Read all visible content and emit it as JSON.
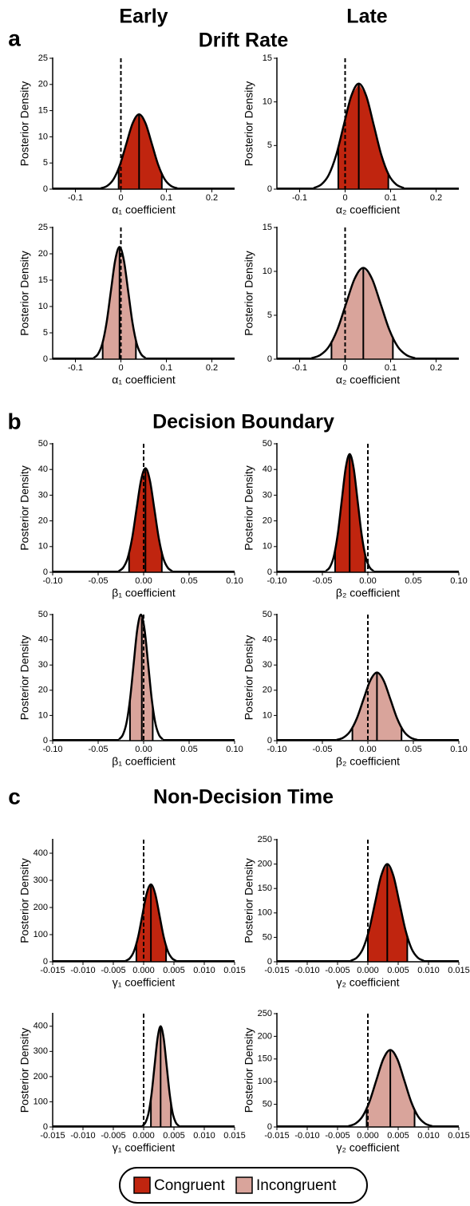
{
  "columns": [
    "Early",
    "Late"
  ],
  "panels": [
    {
      "label": "a",
      "title": "Drift Rate"
    },
    {
      "label": "b",
      "title": "Decision Boundary"
    },
    {
      "label": "c",
      "title": "Non-Decision Time"
    }
  ],
  "chart_data": [
    {
      "type": "density",
      "xlabel": "α₁ coefficient",
      "ylabel": "Posterior Density",
      "xlim": [
        -0.15,
        0.25
      ],
      "xticks": [
        -0.1,
        0,
        0.1,
        0.2
      ],
      "ylim": [
        0,
        25
      ],
      "yticks": [
        0,
        5,
        10,
        15,
        20,
        25
      ],
      "vline": 0,
      "ci": [
        -0.005,
        0.09
      ],
      "median": 0.04,
      "x": [
        -0.044,
        -0.03,
        -0.016,
        -0.002,
        0.012,
        0.026,
        0.04,
        0.054,
        0.068,
        0.082,
        0.096,
        0.11,
        0.124
      ],
      "series": [
        {
          "name": "Congruent",
          "color": "#c0250f",
          "values": [
            0.16,
            0.63,
            1.93,
            4.65,
            8.68,
            12.61,
            14.3,
            12.61,
            8.68,
            4.65,
            1.93,
            0.63,
            0.16
          ]
        }
      ]
    },
    {
      "type": "density",
      "xlabel": "α₂ coefficient",
      "ylabel": "Posterior Density",
      "xlim": [
        -0.15,
        0.25
      ],
      "xticks": [
        -0.1,
        0,
        0.1,
        0.2
      ],
      "ylim": [
        0,
        15
      ],
      "yticks": [
        0,
        5,
        10,
        15
      ],
      "vline": 0,
      "ci": [
        -0.015,
        0.095
      ],
      "median": 0.03,
      "x": [
        -0.069,
        -0.0525,
        -0.036,
        -0.0195,
        -0.003,
        0.0135,
        0.03,
        0.0465,
        0.063,
        0.0795,
        0.096,
        0.1125,
        0.129
      ],
      "series": [
        {
          "name": "Congruent",
          "color": "#c0250f",
          "values": [
            0.13,
            0.53,
            1.63,
            3.93,
            7.34,
            10.67,
            12.1,
            10.67,
            7.34,
            3.93,
            1.63,
            0.53,
            0.13
          ]
        }
      ]
    },
    {
      "type": "density",
      "xlabel": "α₁ coefficient",
      "ylabel": "Posterior Density",
      "xlim": [
        -0.15,
        0.25
      ],
      "xticks": [
        -0.1,
        0,
        0.1,
        0.2
      ],
      "ylim": [
        0,
        25
      ],
      "yticks": [
        0,
        5,
        10,
        15,
        20,
        25
      ],
      "vline": 0,
      "ci": [
        -0.04,
        0.033
      ],
      "median": -0.003,
      "x": [
        -0.06,
        -0.0505,
        -0.041,
        -0.0315,
        -0.022,
        -0.0125,
        -0.003,
        0.0065,
        0.016,
        0.0255,
        0.035,
        0.0445,
        0.054
      ],
      "series": [
        {
          "name": "Incongruent",
          "color": "#d9a49b",
          "values": [
            0.23,
            0.94,
            2.88,
            6.92,
            12.93,
            18.79,
            21.3,
            18.79,
            12.93,
            6.92,
            2.88,
            0.94,
            0.23
          ]
        }
      ]
    },
    {
      "type": "density",
      "xlabel": "α₂ coefficient",
      "ylabel": "Posterior Density",
      "xlim": [
        -0.15,
        0.25
      ],
      "xticks": [
        -0.1,
        0,
        0.1,
        0.2
      ],
      "ylim": [
        0,
        15
      ],
      "yticks": [
        0,
        5,
        10,
        15
      ],
      "vline": 0,
      "ci": [
        -0.03,
        0.105
      ],
      "median": 0.04,
      "x": [
        -0.074,
        -0.055,
        -0.036,
        -0.017,
        0.002,
        0.021,
        0.04,
        0.059,
        0.078,
        0.097,
        0.116,
        0.135,
        0.154
      ],
      "series": [
        {
          "name": "Incongruent",
          "color": "#d9a49b",
          "values": [
            0.11,
            0.46,
            1.4,
            3.38,
            6.31,
            9.17,
            10.4,
            9.17,
            6.31,
            3.38,
            1.4,
            0.46,
            0.11
          ]
        }
      ]
    },
    {
      "type": "density",
      "xlabel": "β₁ coefficient",
      "ylabel": "Posterior Density",
      "xlim": [
        -0.1,
        0.1
      ],
      "xticks": [
        {
          "value": -0.1,
          "label": "-0.10"
        },
        {
          "value": -0.05,
          "label": "-0.05"
        },
        {
          "value": 0,
          "label": "0.00"
        },
        {
          "value": 0.05,
          "label": "0.05"
        },
        {
          "value": 0.1,
          "label": "0.10"
        }
      ],
      "ylim": [
        0,
        50
      ],
      "yticks": [
        0,
        10,
        20,
        30,
        40,
        50
      ],
      "vline": 0,
      "ci": [
        -0.016,
        0.02
      ],
      "median": 0.002,
      "x": [
        -0.0274,
        -0.0225,
        -0.0176,
        -0.0127,
        -0.0078,
        -0.0029,
        0.002,
        0.0069,
        0.0118,
        0.0167,
        0.0216,
        0.0265,
        0.0314
      ],
      "series": [
        {
          "name": "Congruent",
          "color": "#c0250f",
          "values": [
            0.45,
            1.78,
            5.47,
            13.16,
            24.58,
            35.72,
            40.5,
            35.72,
            24.58,
            13.16,
            5.47,
            1.78,
            0.45
          ]
        }
      ]
    },
    {
      "type": "density",
      "xlabel": "β₂ coefficient",
      "ylabel": "Posterior Density",
      "xlim": [
        -0.1,
        0.1
      ],
      "xticks": [
        {
          "value": -0.1,
          "label": "-0.10"
        },
        {
          "value": -0.05,
          "label": "-0.05"
        },
        {
          "value": 0,
          "label": "0.00"
        },
        {
          "value": 0.05,
          "label": "0.05"
        },
        {
          "value": 0.1,
          "label": "0.10"
        }
      ],
      "ylim": [
        0,
        50
      ],
      "yticks": [
        0,
        10,
        20,
        30,
        40,
        50
      ],
      "vline": 0,
      "ci": [
        -0.036,
        -0.003
      ],
      "median": -0.02,
      "x": [
        -0.0461,
        -0.04175,
        -0.0374,
        -0.03305,
        -0.0287,
        -0.02435,
        -0.02,
        -0.01565,
        -0.0113,
        -0.00695,
        -0.0026,
        0.00175,
        0.0061
      ],
      "series": [
        {
          "name": "Congruent",
          "color": "#c0250f",
          "values": [
            0.51,
            2.02,
            6.21,
            14.95,
            27.92,
            40.57,
            46,
            40.57,
            27.92,
            14.95,
            6.21,
            2.02,
            0.51
          ]
        }
      ]
    },
    {
      "type": "density",
      "xlabel": "β₁ coefficient",
      "ylabel": "Posterior Density",
      "xlim": [
        -0.1,
        0.1
      ],
      "xticks": [
        {
          "value": -0.1,
          "label": "-0.10"
        },
        {
          "value": -0.05,
          "label": "-0.05"
        },
        {
          "value": 0,
          "label": "0.00"
        },
        {
          "value": 0.05,
          "label": "0.05"
        },
        {
          "value": 0.1,
          "label": "0.10"
        }
      ],
      "ylim": [
        0,
        50
      ],
      "yticks": [
        0,
        10,
        20,
        30,
        40,
        50
      ],
      "vline": 0,
      "ci": [
        -0.015,
        0.01
      ],
      "median": -0.002,
      "x": [
        -0.027,
        -0.023,
        -0.019,
        -0.015,
        -0.011,
        -0.007,
        -0.003,
        0.001,
        0.005,
        0.009,
        0.013,
        0.017,
        0.021
      ],
      "series": [
        {
          "name": "Incongruent",
          "color": "#d9a49b",
          "values": [
            0.55,
            2.2,
            6.75,
            16.25,
            30.35,
            44.1,
            50,
            44.1,
            30.35,
            16.25,
            6.75,
            2.2,
            0.55
          ]
        }
      ]
    },
    {
      "type": "density",
      "xlabel": "β₂ coefficient",
      "ylabel": "Posterior Density",
      "xlim": [
        -0.1,
        0.1
      ],
      "xticks": [
        {
          "value": -0.1,
          "label": "-0.10"
        },
        {
          "value": -0.05,
          "label": "-0.05"
        },
        {
          "value": 0,
          "label": "0.00"
        },
        {
          "value": 0.05,
          "label": "0.05"
        },
        {
          "value": 0.1,
          "label": "0.10"
        }
      ],
      "ylim": [
        0,
        50
      ],
      "yticks": [
        0,
        10,
        20,
        30,
        40,
        50
      ],
      "vline": 0,
      "ci": [
        -0.017,
        0.037
      ],
      "median": 0.01,
      "x": [
        -0.0344,
        -0.027,
        -0.0196,
        -0.0122,
        -0.0048,
        0.0026,
        0.01,
        0.0174,
        0.0248,
        0.0322,
        0.0396,
        0.047,
        0.0544
      ],
      "series": [
        {
          "name": "Incongruent",
          "color": "#d9a49b",
          "values": [
            0.3,
            1.19,
            3.65,
            8.78,
            16.39,
            23.81,
            27,
            23.81,
            16.39,
            8.78,
            3.65,
            1.19,
            0.3
          ]
        }
      ]
    },
    {
      "type": "density",
      "xlabel": "γ₁ coefficient",
      "ylabel": "Posterior Density",
      "xlim": [
        -0.015,
        0.015
      ],
      "xticks": [
        {
          "value": -0.015,
          "label": "-0.015"
        },
        {
          "value": -0.01,
          "label": "-0.010"
        },
        {
          "value": -0.005,
          "label": "-0.005"
        },
        {
          "value": 0,
          "label": "0.000"
        },
        {
          "value": 0.005,
          "label": "0.005"
        },
        {
          "value": 0.01,
          "label": "0.010"
        },
        {
          "value": 0.015,
          "label": "0.015"
        }
      ],
      "ylim": [
        0,
        450
      ],
      "yticks": [
        0,
        100,
        200,
        300,
        400
      ],
      "vline": 0,
      "ci": [
        -0.0012,
        0.0037
      ],
      "median": 0.0012,
      "x": [
        -0.003,
        -0.0023,
        -0.0016,
        -0.0009,
        -0.0002,
        0.0005,
        0.0012,
        0.0019,
        0.0026,
        0.0033,
        0.004,
        0.0047,
        0.0054
      ],
      "series": [
        {
          "name": "Congruent",
          "color": "#c0250f",
          "values": [
            3.1,
            12.5,
            38.5,
            92.6,
            173,
            251.4,
            285,
            251.4,
            173,
            92.6,
            38.5,
            12.5,
            3.1
          ]
        }
      ]
    },
    {
      "type": "density",
      "xlabel": "γ₂ coefficient",
      "ylabel": "Posterior Density",
      "xlim": [
        -0.015,
        0.015
      ],
      "xticks": [
        {
          "value": -0.015,
          "label": "-0.015"
        },
        {
          "value": -0.01,
          "label": "-0.010"
        },
        {
          "value": -0.005,
          "label": "-0.005"
        },
        {
          "value": 0,
          "label": "0.000"
        },
        {
          "value": 0.005,
          "label": "0.005"
        },
        {
          "value": 0.01,
          "label": "0.010"
        },
        {
          "value": 0.015,
          "label": "0.015"
        }
      ],
      "ylim": [
        0,
        250
      ],
      "yticks": [
        0,
        50,
        100,
        150,
        200,
        250
      ],
      "vline": 0,
      "ci": [
        0,
        0.0065
      ],
      "median": 0.0032,
      "x": [
        -0.0028,
        -0.0018,
        -0.0008,
        0.0002,
        0.0012,
        0.0022,
        0.0032,
        0.0042,
        0.0052,
        0.0062,
        0.0072,
        0.0082,
        0.0092
      ],
      "series": [
        {
          "name": "Congruent",
          "color": "#c0250f",
          "values": [
            2.2,
            8.8,
            27,
            65,
            121.4,
            176.4,
            200,
            176.4,
            121.4,
            65,
            27,
            8.8,
            2.2
          ]
        }
      ]
    },
    {
      "type": "density",
      "xlabel": "γ₁ coefficient",
      "ylabel": "Posterior Density",
      "xlim": [
        -0.015,
        0.015
      ],
      "xticks": [
        {
          "value": -0.015,
          "label": "-0.015"
        },
        {
          "value": -0.01,
          "label": "-0.010"
        },
        {
          "value": -0.005,
          "label": "-0.005"
        },
        {
          "value": 0,
          "label": "0.000"
        },
        {
          "value": 0.005,
          "label": "0.005"
        },
        {
          "value": 0.01,
          "label": "0.010"
        },
        {
          "value": 0.015,
          "label": "0.015"
        }
      ],
      "ylim": [
        0,
        450
      ],
      "yticks": [
        0,
        100,
        200,
        300,
        400
      ],
      "vline": 0,
      "ci": [
        0.0012,
        0.0045
      ],
      "median": 0.0028,
      "x": [
        -0.0002,
        0.0003,
        0.0008,
        0.0013,
        0.0018,
        0.0023,
        0.0028,
        0.0033,
        0.0038,
        0.0043,
        0.0048,
        0.0053,
        0.0058
      ],
      "series": [
        {
          "name": "Incongruent",
          "color": "#d9a49b",
          "values": [
            4.4,
            17.6,
            54,
            130,
            242.8,
            352.8,
            400,
            352.8,
            242.8,
            130,
            54,
            17.6,
            4.4
          ]
        }
      ]
    },
    {
      "type": "density",
      "xlabel": "γ₂ coefficient",
      "ylabel": "Posterior Density",
      "xlim": [
        -0.015,
        0.015
      ],
      "xticks": [
        {
          "value": -0.015,
          "label": "-0.015"
        },
        {
          "value": -0.01,
          "label": "-0.010"
        },
        {
          "value": -0.005,
          "label": "-0.005"
        },
        {
          "value": 0,
          "label": "0.000"
        },
        {
          "value": 0.005,
          "label": "0.005"
        },
        {
          "value": 0.01,
          "label": "0.010"
        },
        {
          "value": 0.015,
          "label": "0.015"
        }
      ],
      "ylim": [
        0,
        250
      ],
      "yticks": [
        0,
        50,
        100,
        150,
        200,
        250
      ],
      "vline": 0,
      "ci": [
        -0.0002,
        0.0077
      ],
      "median": 0.0037,
      "x": [
        -0.0032,
        -0.00205,
        -0.0009,
        0.00025,
        0.0014,
        0.00255,
        0.0037,
        0.00485,
        0.006,
        0.00715,
        0.0083,
        0.00945,
        0.0106
      ],
      "series": [
        {
          "name": "Incongruent",
          "color": "#d9a49b",
          "values": [
            1.87,
            7.48,
            22.95,
            55.25,
            103.19,
            149.94,
            170,
            149.94,
            103.19,
            55.25,
            22.95,
            7.48,
            1.87
          ]
        }
      ]
    }
  ]
}
